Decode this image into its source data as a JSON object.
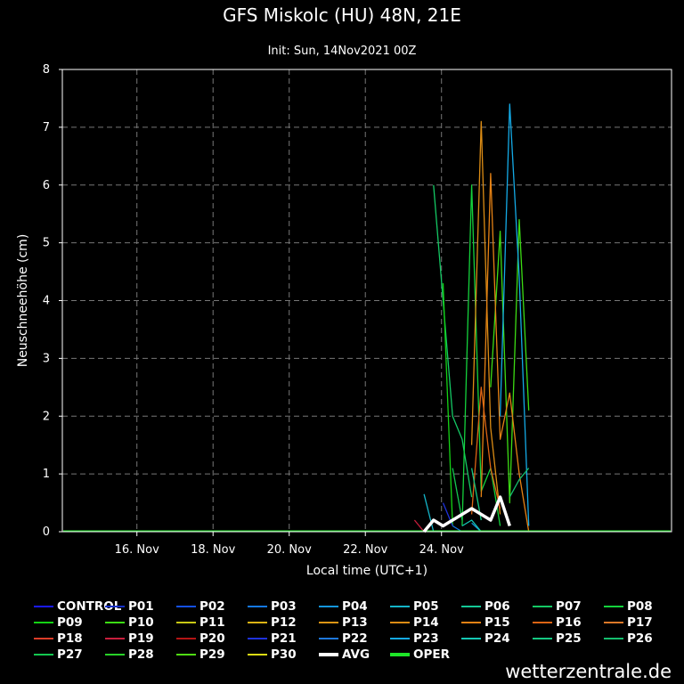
{
  "header": {
    "title": "GFS Miskolc (HU) 48N, 21E",
    "subtitle": "Init: Sun, 14Nov2021 00Z"
  },
  "footer": {
    "site": "wetterzentrale.de"
  },
  "chart_data": {
    "type": "line",
    "title": "GFS Miskolc (HU) 48N, 21E",
    "subtitle": "Init: Sun, 14Nov2021 00Z",
    "xlabel": "Local time (UTC+1)",
    "ylabel": "Neuschneehöhe (cm)",
    "xlim": [
      "2021-11-14T01:00",
      "2021-11-30T01:00"
    ],
    "ylim": [
      0,
      8
    ],
    "x_ticks": [
      {
        "x": "2021-11-16T00:00",
        "label": "16. Nov"
      },
      {
        "x": "2021-11-18T00:00",
        "label": "18. Nov"
      },
      {
        "x": "2021-11-20T00:00",
        "label": "20. Nov"
      },
      {
        "x": "2021-11-22T00:00",
        "label": "22. Nov"
      },
      {
        "x": "2021-11-24T00:00",
        "label": "24. Nov"
      }
    ],
    "y_ticks": [
      0,
      1,
      2,
      3,
      4,
      5,
      6,
      7,
      8
    ],
    "grid": true,
    "legend_position": "bottom",
    "series": [
      {
        "name": "CONTROL",
        "color": "#1a1aff",
        "points": []
      },
      {
        "name": "P01",
        "color": "#1430c8",
        "points": []
      },
      {
        "name": "P02",
        "color": "#1450e6",
        "points": []
      },
      {
        "name": "P03",
        "color": "#1478e6",
        "points": [
          [
            "2021-11-24T07:00",
            0.1
          ],
          [
            "2021-11-24T13:00",
            0.0
          ]
        ]
      },
      {
        "name": "P04",
        "color": "#1496dc",
        "points": [
          [
            "2021-11-24T19:00",
            0.15
          ],
          [
            "2021-11-25T01:00",
            0.0
          ]
        ]
      },
      {
        "name": "P05",
        "color": "#14b4c8",
        "points": [
          [
            "2021-11-23T13:00",
            0.65
          ],
          [
            "2021-11-23T19:00",
            0.0
          ]
        ]
      },
      {
        "name": "P06",
        "color": "#14c896",
        "points": []
      },
      {
        "name": "P07",
        "color": "#14c864",
        "points": [
          [
            "2021-11-23T19:00",
            6.0
          ],
          [
            "2021-11-24T07:00",
            2.0
          ],
          [
            "2021-11-24T13:00",
            1.6
          ],
          [
            "2021-11-24T19:00",
            0.6
          ]
        ]
      },
      {
        "name": "P08",
        "color": "#14d23c",
        "points": [
          [
            "2021-11-24T13:00",
            0.1
          ],
          [
            "2021-11-24T19:00",
            6.0
          ],
          [
            "2021-11-25T01:00",
            0.7
          ],
          [
            "2021-11-25T07:00",
            1.1
          ],
          [
            "2021-11-25T13:00",
            0.1
          ]
        ]
      },
      {
        "name": "P09",
        "color": "#14d214",
        "points": [
          [
            "2021-11-24T01:00",
            4.3
          ],
          [
            "2021-11-24T07:00",
            0.1
          ]
        ]
      },
      {
        "name": "P10",
        "color": "#3cdc14",
        "points": [
          [
            "2021-11-25T07:00",
            2.5
          ],
          [
            "2021-11-25T13:00",
            5.2
          ],
          [
            "2021-11-25T19:00",
            0.5
          ],
          [
            "2021-11-26T01:00",
            5.4
          ],
          [
            "2021-11-26T07:00",
            2.1
          ]
        ]
      },
      {
        "name": "P11",
        "color": "#c8c814",
        "points": []
      },
      {
        "name": "P12",
        "color": "#dcb414",
        "points": []
      },
      {
        "name": "P13",
        "color": "#dc9614",
        "points": []
      },
      {
        "name": "P14",
        "color": "#dc8c14",
        "points": [
          [
            "2021-11-24T19:00",
            1.5
          ],
          [
            "2021-11-25T01:00",
            7.1
          ],
          [
            "2021-11-25T07:00",
            1.8
          ],
          [
            "2021-11-25T13:00",
            0.3
          ]
        ]
      },
      {
        "name": "P15",
        "color": "#e68214",
        "points": [
          [
            "2021-11-25T01:00",
            0.6
          ],
          [
            "2021-11-25T07:00",
            6.2
          ],
          [
            "2021-11-25T13:00",
            1.6
          ],
          [
            "2021-11-25T19:00",
            2.4
          ],
          [
            "2021-11-26T01:00",
            1.0
          ],
          [
            "2021-11-26T07:00",
            0.0
          ]
        ]
      },
      {
        "name": "P16",
        "color": "#dc6414",
        "points": [
          [
            "2021-11-24T19:00",
            0.3
          ],
          [
            "2021-11-25T01:00",
            2.5
          ],
          [
            "2021-11-25T07:00",
            1.1
          ],
          [
            "2021-11-25T13:00",
            0.4
          ]
        ]
      },
      {
        "name": "P17",
        "color": "#dc7828",
        "points": []
      },
      {
        "name": "P18",
        "color": "#dc3c28",
        "points": []
      },
      {
        "name": "P19",
        "color": "#c81e3c",
        "points": [
          [
            "2021-11-23T07:00",
            0.2
          ],
          [
            "2021-11-23T13:00",
            0.0
          ]
        ]
      },
      {
        "name": "P20",
        "color": "#b41414",
        "points": []
      },
      {
        "name": "P21",
        "color": "#1e32dc",
        "points": [
          [
            "2021-11-24T01:00",
            0.5
          ],
          [
            "2021-11-24T07:00",
            0.1
          ]
        ]
      },
      {
        "name": "P22",
        "color": "#1e78dc",
        "points": []
      },
      {
        "name": "P23",
        "color": "#14aae6",
        "points": [
          [
            "2021-11-25T13:00",
            2.0
          ],
          [
            "2021-11-25T19:00",
            7.4
          ],
          [
            "2021-11-26T01:00",
            4.4
          ],
          [
            "2021-11-26T07:00",
            0.1
          ]
        ]
      },
      {
        "name": "P24",
        "color": "#14c8b4",
        "points": [
          [
            "2021-11-24T13:00",
            0.1
          ],
          [
            "2021-11-24T19:00",
            0.2
          ],
          [
            "2021-11-25T01:00",
            0.0
          ]
        ]
      },
      {
        "name": "P25",
        "color": "#14c882",
        "points": [
          [
            "2021-11-24T19:00",
            1.1
          ],
          [
            "2021-11-25T01:00",
            0.2
          ]
        ]
      },
      {
        "name": "P26",
        "color": "#14be6e",
        "points": [
          [
            "2021-11-25T19:00",
            0.6
          ],
          [
            "2021-11-26T01:00",
            0.9
          ],
          [
            "2021-11-26T07:00",
            1.1
          ]
        ]
      },
      {
        "name": "P27",
        "color": "#14c850",
        "points": [
          [
            "2021-11-24T07:00",
            1.1
          ],
          [
            "2021-11-24T13:00",
            0.2
          ]
        ]
      },
      {
        "name": "P28",
        "color": "#28d228",
        "points": []
      },
      {
        "name": "P29",
        "color": "#50dc14",
        "points": []
      },
      {
        "name": "P30",
        "color": "#dcdc14",
        "points": []
      },
      {
        "name": "AVG",
        "color": "#ffffff",
        "points": [
          [
            "2021-11-23T13:00",
            0.0
          ],
          [
            "2021-11-23T19:00",
            0.2
          ],
          [
            "2021-11-24T01:00",
            0.1
          ],
          [
            "2021-11-24T07:00",
            0.2
          ],
          [
            "2021-11-24T13:00",
            0.3
          ],
          [
            "2021-11-24T19:00",
            0.4
          ],
          [
            "2021-11-25T01:00",
            0.3
          ],
          [
            "2021-11-25T07:00",
            0.2
          ],
          [
            "2021-11-25T13:00",
            0.6
          ],
          [
            "2021-11-25T19:00",
            0.1
          ]
        ]
      },
      {
        "name": "OPER",
        "color": "#1ee628",
        "points": []
      }
    ]
  }
}
